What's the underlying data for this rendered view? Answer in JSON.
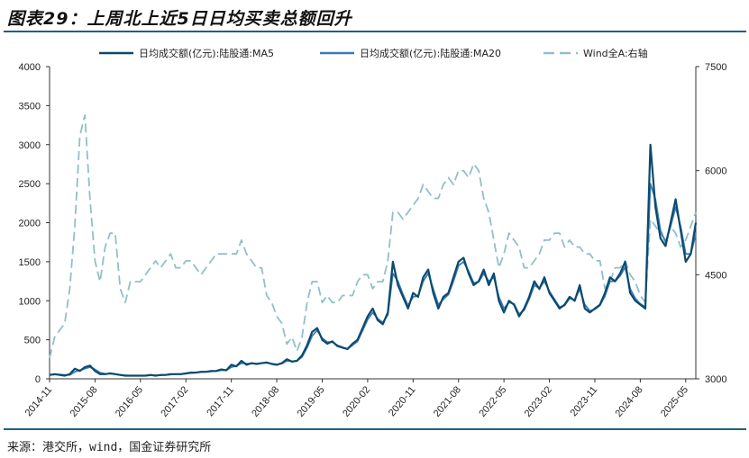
{
  "title": "图表29：上周北上近5日日均买卖总额回升",
  "source": "来源：港交所，wind，国金证券研究所",
  "chart_data": {
    "type": "line",
    "title": "图表29：上周北上近5日日均买卖总额回升",
    "x_start": "2014-11",
    "x_step": "month",
    "x_ticks": [
      "2014-11",
      "2015-08",
      "2016-05",
      "2017-02",
      "2017-11",
      "2018-08",
      "2019-05",
      "2020-02",
      "2020-11",
      "2021-08",
      "2022-05",
      "2023-02",
      "2023-11",
      "2024-08",
      "2025-05"
    ],
    "y_left": {
      "range": [
        0,
        4000
      ],
      "ticks": [
        "0",
        "500",
        "1000",
        "1500",
        "2000",
        "2500",
        "3000",
        "3500",
        "4000"
      ]
    },
    "y_right": {
      "range": [
        3000,
        7500
      ],
      "ticks": [
        "3000",
        "4500",
        "6000",
        "7500"
      ]
    },
    "legend_position": "top",
    "grid": false,
    "series": [
      {
        "name": "日均成交额(亿元):陆股通:MA5",
        "axis": "left",
        "color": "#0b4a6e",
        "style": "solid",
        "values": [
          50,
          60,
          50,
          40,
          60,
          130,
          100,
          150,
          170,
          100,
          60,
          60,
          70,
          60,
          50,
          40,
          40,
          40,
          40,
          40,
          50,
          40,
          50,
          50,
          60,
          60,
          60,
          70,
          80,
          80,
          90,
          90,
          100,
          100,
          120,
          110,
          180,
          160,
          230,
          180,
          200,
          190,
          200,
          210,
          190,
          180,
          200,
          250,
          220,
          230,
          300,
          430,
          600,
          650,
          500,
          450,
          480,
          420,
          400,
          380,
          450,
          500,
          650,
          800,
          900,
          750,
          700,
          850,
          1500,
          1200,
          1050,
          900,
          1100,
          1050,
          1300,
          1400,
          1100,
          900,
          1050,
          1100,
          1300,
          1500,
          1550,
          1350,
          1200,
          1250,
          1400,
          1200,
          1350,
          1000,
          850,
          1000,
          950,
          800,
          900,
          1050,
          1250,
          1150,
          1300,
          1100,
          1000,
          900,
          950,
          1050,
          1000,
          1200,
          900,
          850,
          900,
          950,
          1100,
          1300,
          1250,
          1350,
          1500,
          1100,
          1000,
          950,
          900,
          3000,
          2200,
          1800,
          1700,
          2000,
          2300,
          1900,
          1500,
          1600,
          2000
        ]
      },
      {
        "name": "日均成交额(亿元):陆股通:MA20",
        "axis": "left",
        "color": "#3a7ab8",
        "style": "solid",
        "values": [
          50,
          55,
          55,
          50,
          50,
          90,
          110,
          130,
          150,
          120,
          80,
          65,
          65,
          60,
          50,
          45,
          40,
          40,
          40,
          40,
          45,
          45,
          45,
          50,
          55,
          60,
          60,
          65,
          75,
          80,
          85,
          90,
          95,
          100,
          110,
          110,
          150,
          165,
          200,
          195,
          195,
          195,
          200,
          205,
          195,
          185,
          195,
          230,
          225,
          230,
          280,
          400,
          550,
          620,
          520,
          470,
          470,
          430,
          405,
          385,
          430,
          480,
          620,
          760,
          850,
          770,
          720,
          820,
          1350,
          1250,
          1080,
          940,
          1050,
          1060,
          1250,
          1350,
          1150,
          950,
          1020,
          1080,
          1250,
          1450,
          1500,
          1380,
          1230,
          1240,
          1350,
          1250,
          1300,
          1050,
          900,
          980,
          960,
          830,
          880,
          1020,
          1200,
          1160,
          1250,
          1120,
          1020,
          920,
          940,
          1030,
          1010,
          1150,
          950,
          870,
          890,
          940,
          1060,
          1250,
          1250,
          1320,
          1430,
          1150,
          1030,
          960,
          920,
          2500,
          2300,
          1900,
          1750,
          1950,
          2200,
          1950,
          1600,
          1600,
          1850
        ]
      },
      {
        "name": "Wind全A:右轴",
        "axis": "right",
        "color": "#8fc0c9",
        "style": "dashed",
        "values": [
          3300,
          3600,
          3700,
          3800,
          4300,
          5200,
          6500,
          6800,
          5600,
          4700,
          4400,
          4900,
          5100,
          5100,
          4300,
          4100,
          4400,
          4400,
          4400,
          4500,
          4600,
          4700,
          4600,
          4700,
          4800,
          4600,
          4600,
          4700,
          4700,
          4600,
          4500,
          4600,
          4700,
          4800,
          4800,
          4800,
          4800,
          4800,
          5000,
          4800,
          4700,
          4600,
          4600,
          4200,
          4100,
          3900,
          3800,
          3500,
          3600,
          3400,
          3600,
          4100,
          4400,
          4400,
          4100,
          4200,
          4100,
          4100,
          4200,
          4200,
          4200,
          4400,
          4500,
          4500,
          4300,
          4400,
          4400,
          4700,
          5400,
          5400,
          5300,
          5400,
          5500,
          5600,
          5800,
          5700,
          5600,
          5600,
          5800,
          5900,
          5800,
          6000,
          6000,
          5900,
          6100,
          6000,
          5600,
          5400,
          5000,
          4600,
          4800,
          5100,
          5000,
          4900,
          4600,
          4600,
          4700,
          4800,
          5000,
          5000,
          5100,
          5100,
          4900,
          5000,
          4900,
          4900,
          4800,
          4800,
          4700,
          4700,
          4300,
          4400,
          4600,
          4600,
          4700,
          4500,
          4400,
          4200,
          4100,
          5300,
          5200,
          5100,
          5000,
          5200,
          5100,
          4900,
          5000,
          5200,
          5400
        ]
      }
    ]
  }
}
